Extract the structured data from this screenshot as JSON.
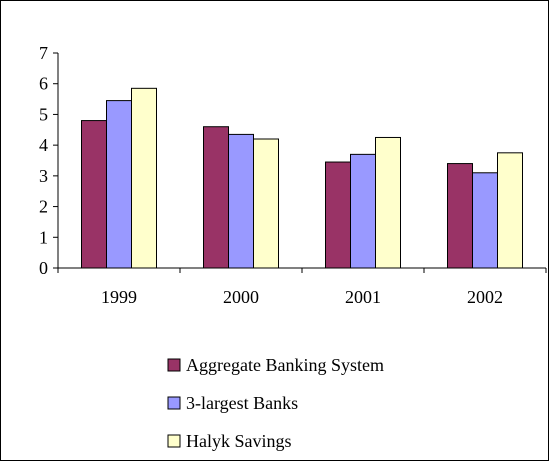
{
  "chart_data": {
    "type": "bar",
    "categories": [
      "1999",
      "2000",
      "2001",
      "2002"
    ],
    "series": [
      {
        "name": "Aggregate Banking System",
        "values": [
          4.8,
          4.6,
          3.45,
          3.4
        ],
        "color": "#993366"
      },
      {
        "name": "3-largest Banks",
        "values": [
          5.45,
          4.35,
          3.7,
          3.1
        ],
        "color": "#9999ff"
      },
      {
        "name": "Halyk Savings",
        "values": [
          5.85,
          4.2,
          4.25,
          3.75
        ],
        "color": "#ffffcc"
      }
    ],
    "ylim": [
      0,
      7
    ],
    "yticks": [
      "0",
      "1",
      "2",
      "3",
      "4",
      "5",
      "6",
      "7"
    ],
    "grid": false,
    "legend_position": "bottom"
  }
}
